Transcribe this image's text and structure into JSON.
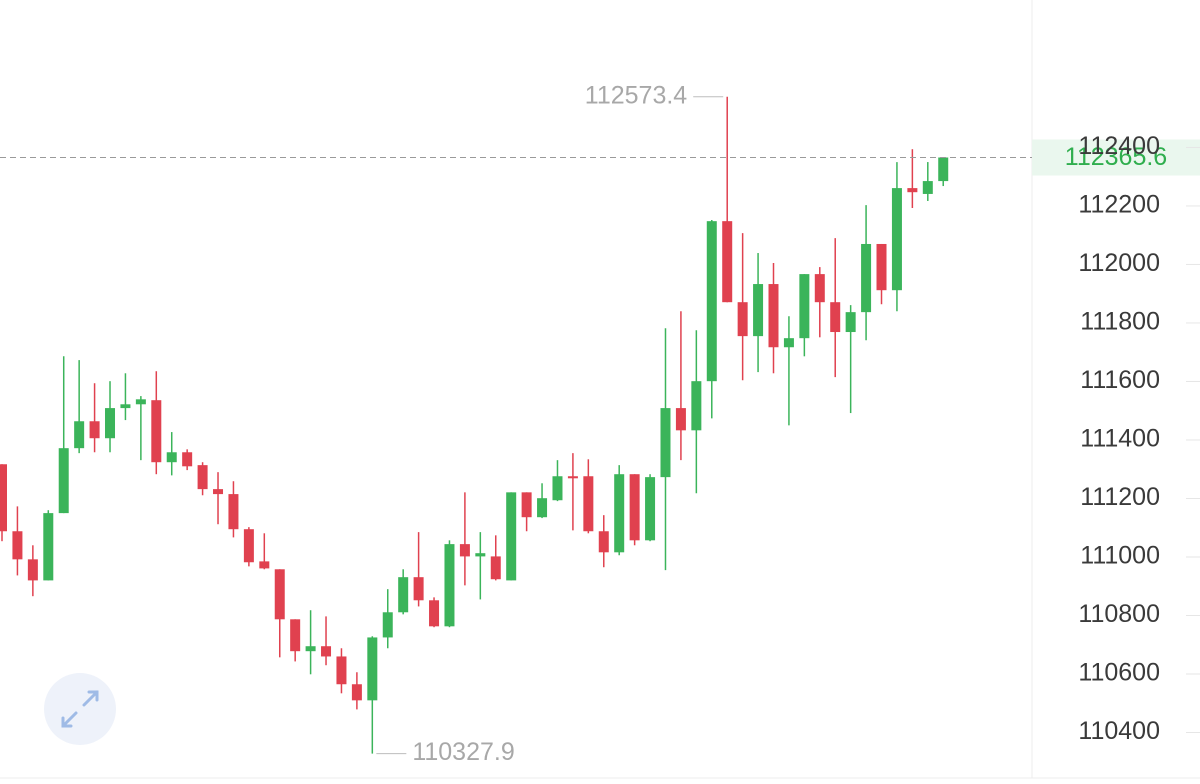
{
  "chart_data": {
    "type": "candlestick",
    "open": [
      111317,
      111088,
      110992,
      110920,
      111150,
      111372,
      111464,
      111406,
      111509,
      111522,
      111536,
      111324,
      111358,
      111314,
      111232,
      111215,
      111095,
      110985,
      110958,
      110787,
      110678,
      110695,
      110660,
      110565,
      110510,
      110725,
      110811,
      110931,
      110852,
      110763,
      111044,
      111002,
      111002,
      110920,
      111221,
      111136,
      111194,
      111276,
      111276,
      111088,
      111016,
      111283,
      111057,
      111273,
      111509,
      111433,
      111601,
      112148,
      111871,
      111755,
      111933,
      111717,
      111748,
      111967,
      111871,
      111769,
      111837,
      112070,
      111912,
      112261,
      112241,
      112285
    ],
    "high": [
      111317,
      111173,
      111040,
      111160,
      111686,
      111673,
      111594,
      111601,
      111628,
      111550,
      111635,
      111427,
      111368,
      111324,
      111290,
      111259,
      111102,
      111081,
      110958,
      110787,
      110818,
      110797,
      110688,
      110606,
      110729,
      110890,
      110958,
      111085,
      110862,
      111057,
      111221,
      111085,
      111074,
      111221,
      111221,
      111252,
      111331,
      111355,
      111334,
      111143,
      111314,
      111283,
      111283,
      111782,
      111840,
      111775,
      112152,
      112573.4,
      112107,
      112039,
      112005,
      111823,
      111967,
      111991,
      112090,
      111861,
      112203,
      112070,
      112350,
      112394,
      112350,
      112365.6
    ],
    "low": [
      111054,
      110937,
      110866,
      110920,
      111150,
      111355,
      111358,
      111358,
      111468,
      111331,
      111283,
      111279,
      111297,
      111211,
      111112,
      111067,
      110968,
      110958,
      110657,
      110643,
      110599,
      110630,
      110534,
      110479,
      110327.9,
      110688,
      110804,
      110831,
      110760,
      110760,
      110903,
      110855,
      110920,
      110920,
      111088,
      111133,
      111191,
      111091,
      111081,
      110965,
      111006,
      111040,
      111054,
      110955,
      111331,
      111218,
      111474,
      111871,
      111604,
      111632,
      111628,
      111450,
      111686,
      111751,
      111615,
      111492,
      111741,
      111864,
      111840,
      112193,
      112217,
      112268
    ],
    "close": [
      111088,
      110992,
      110920,
      111150,
      111372,
      111464,
      111406,
      111509,
      111522,
      111539,
      111324,
      111358,
      111310,
      111232,
      111215,
      111095,
      110982,
      110961,
      110787,
      110678,
      110695,
      110660,
      110565,
      110510,
      110725,
      110811,
      110931,
      110852,
      110763,
      111044,
      111002,
      111013,
      110924,
      111221,
      111136,
      111201,
      111276,
      111269,
      111088,
      111016,
      111283,
      111057,
      111273,
      111509,
      111433,
      111601,
      112148,
      111871,
      111755,
      111933,
      111717,
      111748,
      111967,
      111871,
      111769,
      111837,
      112070,
      111912,
      112261,
      112247,
      112285,
      112365.6
    ],
    "up_color": "#3bb45a",
    "down_color": "#e0414f",
    "ylim": [
      110224,
      112904
    ],
    "yticks": [
      110400,
      110600,
      110800,
      111000,
      111200,
      111400,
      111600,
      111800,
      112000,
      112200,
      112400
    ]
  }
}
